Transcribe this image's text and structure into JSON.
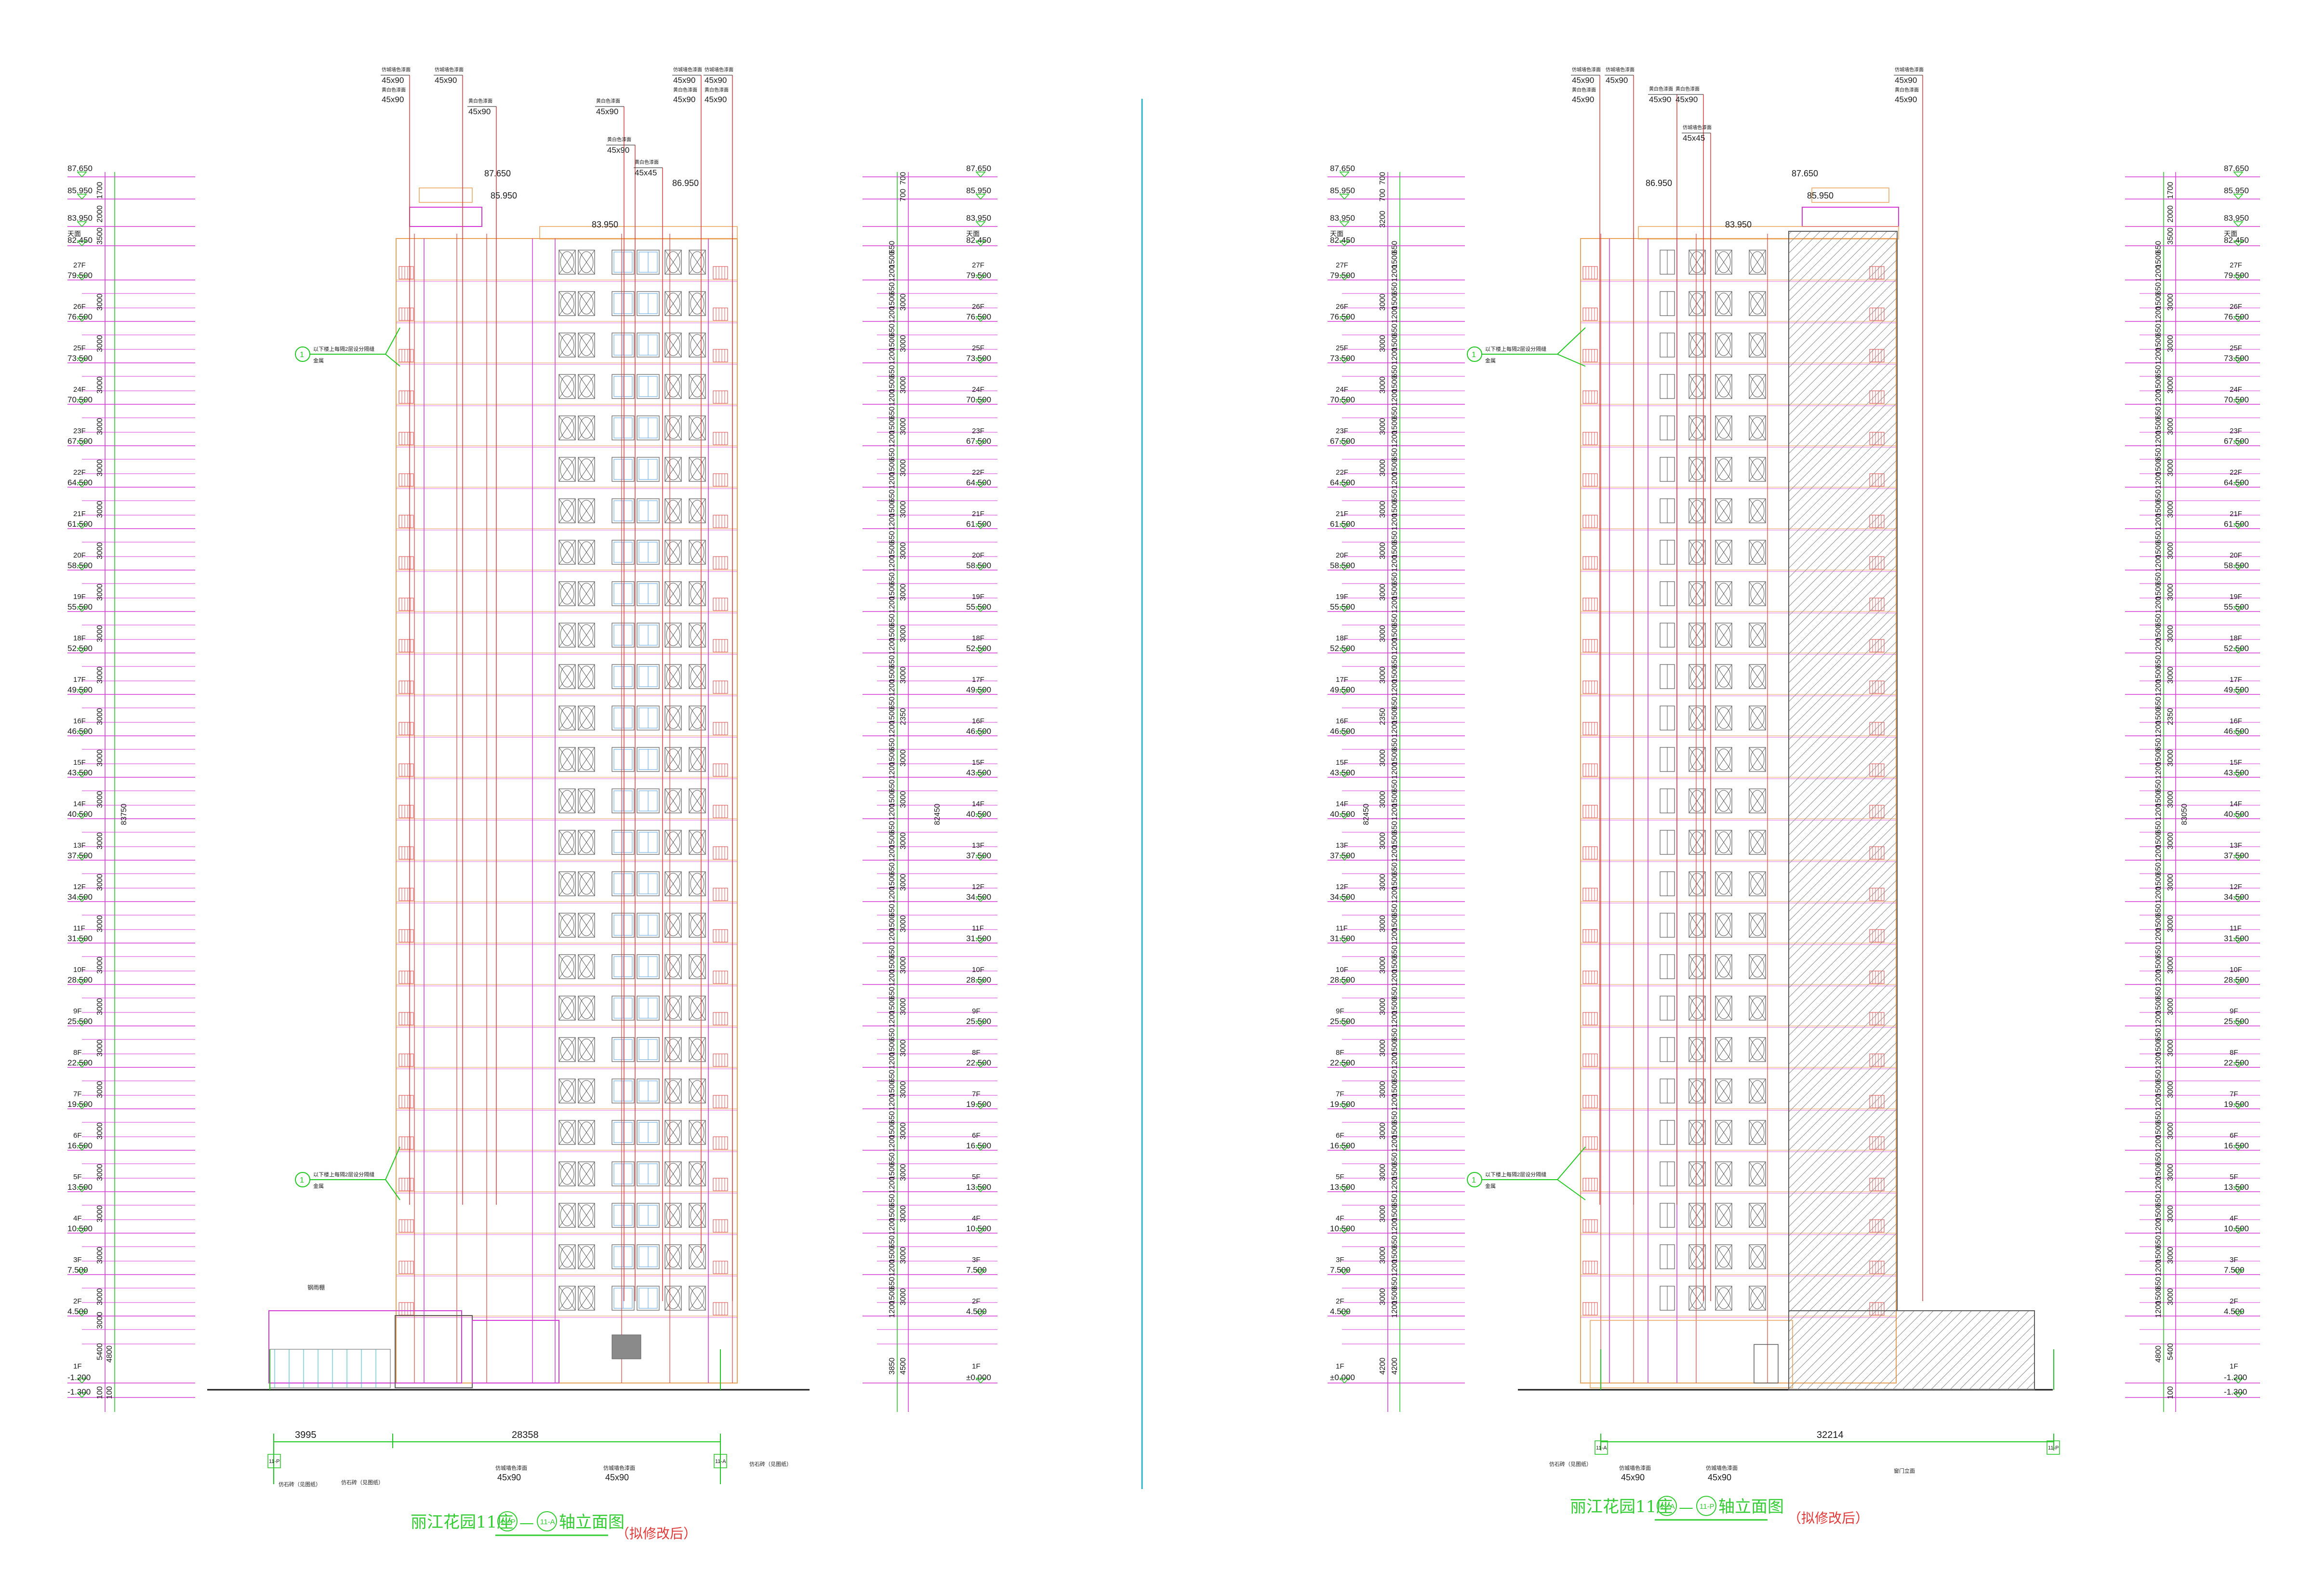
{
  "colors": {
    "background": "#ffffff",
    "green": "#22c722",
    "magenta": "#d43bd4",
    "red": "#d94141",
    "orange": "#e8a25a",
    "cyan": "#2bb5c8",
    "gray": "#5c5c5c",
    "black": "#1a1a1a",
    "title_green": "#33cc33",
    "title_red": "#e03a3a",
    "hatch": "#8a8a8a"
  },
  "floors": [
    {
      "name": "27F",
      "elev": "79.500"
    },
    {
      "name": "26F",
      "elev": "76.500"
    },
    {
      "name": "25F",
      "elev": "73.500"
    },
    {
      "name": "24F",
      "elev": "70.500"
    },
    {
      "name": "23F",
      "elev": "67.500"
    },
    {
      "name": "22F",
      "elev": "64.500"
    },
    {
      "name": "21F",
      "elev": "61.500"
    },
    {
      "name": "20F",
      "elev": "58.500"
    },
    {
      "name": "19F",
      "elev": "55.500"
    },
    {
      "name": "18F",
      "elev": "52.500"
    },
    {
      "name": "17F",
      "elev": "49.500"
    },
    {
      "name": "16F",
      "elev": "46.500"
    },
    {
      "name": "15F",
      "elev": "43.500"
    },
    {
      "name": "14F",
      "elev": "40.500"
    },
    {
      "name": "13F",
      "elev": "37.500"
    },
    {
      "name": "12F",
      "elev": "34.500"
    },
    {
      "name": "11F",
      "elev": "31.500"
    },
    {
      "name": "10F",
      "elev": "28.500"
    },
    {
      "name": "9F",
      "elev": "25.500"
    },
    {
      "name": "8F",
      "elev": "22.500"
    },
    {
      "name": "7F",
      "elev": "19.500"
    },
    {
      "name": "6F",
      "elev": "16.500"
    },
    {
      "name": "5F",
      "elev": "13.500"
    },
    {
      "name": "4F",
      "elev": "10.500"
    },
    {
      "name": "3F",
      "elev": "7.500"
    },
    {
      "name": "2F",
      "elev": "4.500"
    }
  ],
  "top_levels": {
    "l1": "87.650",
    "l2": "85.950",
    "l3": "83.950",
    "roof_label": "天面",
    "l4": "82.450"
  },
  "dims": {
    "d1700": "1700",
    "d2000": "2000",
    "d3500": "3500",
    "d2950": "2950",
    "d3000": "3000",
    "d5400": "5400",
    "d4800": "4800",
    "d100": "100",
    "d83750": "83750",
    "d700": "700",
    "d3200": "3200",
    "d82450": "82450",
    "d3850": "3850",
    "d4500": "4500",
    "d650": "650",
    "d1500": "1500",
    "d1200": "1200",
    "d550": "550",
    "d2350": "2350",
    "d300": "300",
    "d83050": "83050",
    "d4200": "4200",
    "d1000": "1000"
  },
  "sheet1": {
    "bottom_left_name": "1F",
    "bottom_left_elev1": "-1.200",
    "bottom_left_elev2": "-1.300",
    "bottom_right_name": "1F",
    "bottom_right_elev": "±0.000",
    "top_callouts": [
      {
        "l1": "仿城墙色漆面",
        "l2": "45x90",
        "l3": "黄白色漆面",
        "l4": "45x90"
      },
      {
        "l1": "仿城墙色漆面",
        "l2": "45x90"
      },
      {
        "l1": "黄白色漆面",
        "l2": "45x90"
      },
      {
        "l1": "黄白色漆面",
        "l2": "45x90"
      },
      {
        "l1": "黄白色漆面",
        "l2": "45x90"
      },
      {
        "l1": "黄白色漆面",
        "l2": "45x45"
      },
      {
        "l1": "仿城墙色漆面",
        "l2": "45x90",
        "l3": "黄白色漆面",
        "l4": "45x90"
      },
      {
        "l1": "仿城墙色漆面",
        "l2": "45x90",
        "l3": "黄白色漆面",
        "l4": "45x90"
      }
    ],
    "roof_elev_a": "87.650",
    "roof_elev_b": "85.950",
    "roof_elev_c": "86.950",
    "roof_elev_d": "83.950",
    "note": "以下楼上每隔2层设分隔缝",
    "note2": "金属",
    "note_tag": "1",
    "canopy_label": "钢雨棚",
    "dim_a": "3995",
    "dim_b": "28358",
    "axis_left": "11-P",
    "axis_right": "11-A",
    "ground_note_left": "仿石砖（见图纸）",
    "ground_note_mid": "仿石砖（见图纸）",
    "ground_note_right": "仿石砖（见图纸）",
    "bottom_callout_1": "仿城墙色漆面",
    "bottom_callout_1b": "45x90",
    "bottom_callout_2": "仿城墙色漆面",
    "bottom_callout_2b": "45x90",
    "title_prefix": "丽江花园11座",
    "title_axis_a": "11-P",
    "title_dash": "—",
    "title_axis_b": "11-A",
    "title_suffix": "轴立面图",
    "title_note": "（拟修改后）"
  },
  "sheet2": {
    "bottom_left_name": "1F",
    "bottom_left_elev": "±0.000",
    "bottom_right_name": "1F",
    "bottom_right_elev1": "-1.200",
    "bottom_right_elev2": "-1.300",
    "top_callouts": [
      {
        "l1": "仿城墙色漆面",
        "l2": "45x90",
        "l3": "黄白色漆面",
        "l4": "45x90"
      },
      {
        "l1": "仿城墙色漆面",
        "l2": "45x90"
      },
      {
        "l1": "黄白色漆面",
        "l2": "45x90"
      },
      {
        "l1": "黄白色漆面",
        "l2": "45x90"
      },
      {
        "l1": "仿城墙色漆面",
        "l2": "45x45"
      },
      {
        "l1": "仿城墙色漆面",
        "l2": "45x90",
        "l3": "黄白色漆面",
        "l4": "45x90"
      }
    ],
    "roof_elev_a": "87.650",
    "roof_elev_b": "85.950",
    "roof_elev_c": "86.950",
    "roof_elev_d": "83.950",
    "note": "以下楼上每隔2层设分隔缝",
    "note2": "金属",
    "note_tag": "1",
    "dim_a": "32214",
    "axis_left": "11-A",
    "axis_right": "11-P",
    "ground_note_left": "仿石砖（见图纸）",
    "ground_note_right": "窗门立面",
    "bottom_callout_1": "仿城墙色漆面",
    "bottom_callout_1b": "45x90",
    "bottom_callout_2": "仿城墙色漆面",
    "bottom_callout_2b": "45x90",
    "title_prefix": "丽江花园11座",
    "title_axis_a": "11-A",
    "title_dash": "—",
    "title_axis_b": "11-P",
    "title_suffix": "轴立面图",
    "title_note": "（拟修改后）"
  }
}
